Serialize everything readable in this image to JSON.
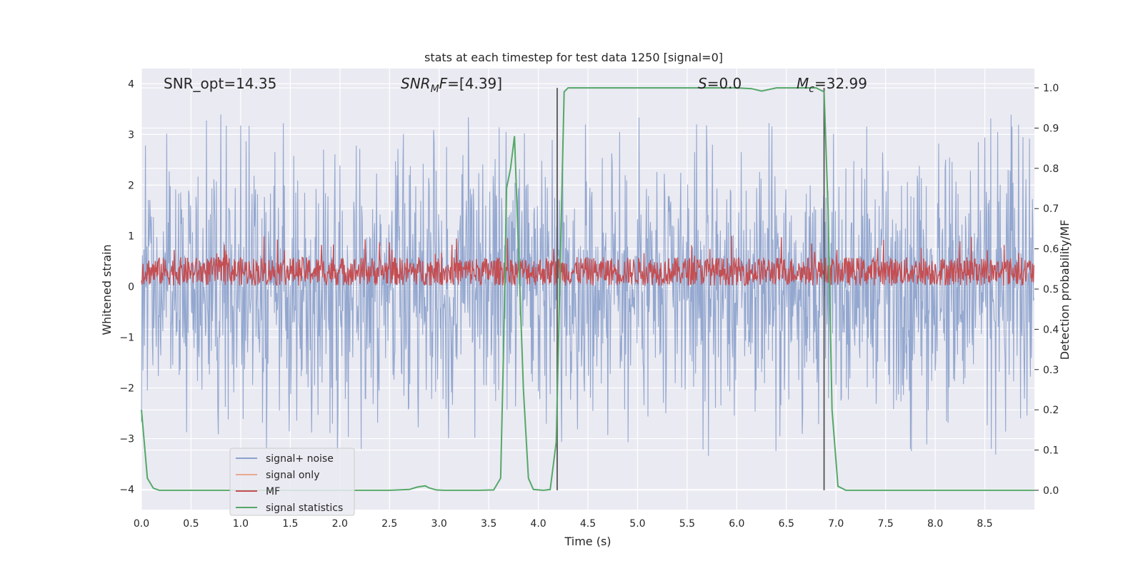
{
  "chart_data": {
    "type": "line",
    "title": "stats at each timestep for test data 1250 [signal=0]",
    "xlabel": "Time (s)",
    "ylabel": "Whitened strain",
    "y2label": "Detection probability/MF",
    "xlim": [
      0.0,
      9.0
    ],
    "ylim": [
      -4.4,
      4.3
    ],
    "y2lim": [
      -0.048,
      1.048
    ],
    "xticks": [
      "0.0",
      "0.5",
      "1.0",
      "1.5",
      "2.0",
      "2.5",
      "3.0",
      "3.5",
      "4.0",
      "4.5",
      "5.0",
      "5.5",
      "6.0",
      "6.5",
      "7.0",
      "7.5",
      "8.0",
      "8.5"
    ],
    "yticks": [
      "4",
      "3",
      "2",
      "1",
      "0",
      "−1",
      "−2",
      "−3",
      "−4"
    ],
    "y2ticks": [
      "1.0",
      "0.9",
      "0.8",
      "0.7",
      "0.6",
      "0.5",
      "0.4",
      "0.3",
      "0.2",
      "0.1",
      "0.0"
    ],
    "annotations": {
      "snr_opt": "SNR_opt=14.35",
      "snr_mf_label": "SNR",
      "snr_mf_sub": "M",
      "snr_mf_suffix": "F",
      "snr_mf_value": "=[4.39]",
      "s_label": "S",
      "s_value": "=0.0",
      "mc_label": "M",
      "mc_sub": "c",
      "mc_value": "=32.99"
    },
    "legend": {
      "location": "lower-left",
      "entries": [
        {
          "label": "signal+ noise",
          "color": "#8ea3cc"
        },
        {
          "label": "signal only",
          "color": "#e8a98f"
        },
        {
          "label": "MF",
          "color": "#c44e52"
        },
        {
          "label": "signal statistics",
          "color": "#55a868"
        }
      ]
    },
    "vertical_lines_x": [
      4.19,
      6.88
    ],
    "noise": {
      "description_free": true,
      "sample_step_s": 0.005,
      "y_range": [
        -4.0,
        3.8
      ],
      "color": "#8ea3cc"
    },
    "mf": {
      "sample_step_s": 0.005,
      "center": 0.3,
      "spread": 0.35,
      "peak": 1.0,
      "color": "#c44e52"
    },
    "signal_statistics": {
      "axis": "right",
      "color": "#55a868",
      "x": [
        0.0,
        0.06,
        0.12,
        0.18,
        0.3,
        0.6,
        1.0,
        1.5,
        2.0,
        2.5,
        2.7,
        2.78,
        2.86,
        2.9,
        2.97,
        3.05,
        3.2,
        3.4,
        3.55,
        3.62,
        3.65,
        3.68,
        3.72,
        3.76,
        3.8,
        3.85,
        3.9,
        3.95,
        4.05,
        4.12,
        4.18,
        4.22,
        4.26,
        4.3,
        4.5,
        5.0,
        5.5,
        6.0,
        6.15,
        6.25,
        6.4,
        6.6,
        6.8,
        6.88,
        6.92,
        6.96,
        7.02,
        7.1,
        7.5,
        8.0,
        8.5,
        9.0
      ],
      "y": [
        0.2,
        0.03,
        0.005,
        0.0,
        0.0,
        0.0,
        0.0,
        0.0,
        0.0,
        0.0,
        0.002,
        0.008,
        0.011,
        0.006,
        0.001,
        0.0,
        0.0,
        0.0,
        0.001,
        0.03,
        0.35,
        0.75,
        0.8,
        0.88,
        0.6,
        0.25,
        0.03,
        0.002,
        0.0,
        0.002,
        0.12,
        0.55,
        0.99,
        1.0,
        1.0,
        1.0,
        1.0,
        1.0,
        0.998,
        0.992,
        1.0,
        1.0,
        1.0,
        0.99,
        0.7,
        0.2,
        0.01,
        0.0,
        0.0,
        0.0,
        0.0,
        0.0
      ]
    }
  }
}
